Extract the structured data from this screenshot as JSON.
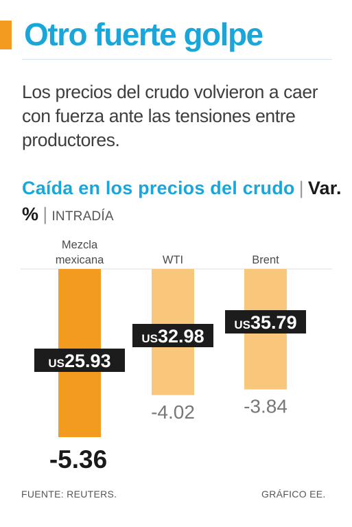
{
  "header": {
    "title": "Otro fuerte golpe",
    "subtitle": "Los precios del crudo volvieron a caer con fuerza ante las tensiones entre productores."
  },
  "chart_heading": {
    "title": "Caída en los precios del crudo",
    "unit": "Var. %",
    "note": "INTRADÍA"
  },
  "colors": {
    "accent": "#f39b1f",
    "title_blue": "#19a7db",
    "bar_highlight": "#f39b1f",
    "bar_light": "#f9c77b",
    "price_label_bg": "#1c1c1c"
  },
  "chart_data": {
    "type": "bar",
    "categories": [
      "Mezcla mexicana",
      "WTI",
      "Brent"
    ],
    "category_label_lines": [
      [
        "Mezcla",
        "mexicana"
      ],
      [
        "WTI"
      ],
      [
        "Brent"
      ]
    ],
    "values": [
      -5.36,
      -4.02,
      -3.84
    ],
    "value_labels": [
      "-5.36",
      "-4.02",
      "-3.84"
    ],
    "price_prefix": "US",
    "prices": [
      "25.93",
      "32.98",
      "35.79"
    ],
    "highlight_index": 0,
    "ylabel": "Var. %",
    "ylim": [
      -5.36,
      0
    ]
  },
  "footer": {
    "source": "FUENTE: REUTERS.",
    "credit": "GRÁFICO EE."
  }
}
